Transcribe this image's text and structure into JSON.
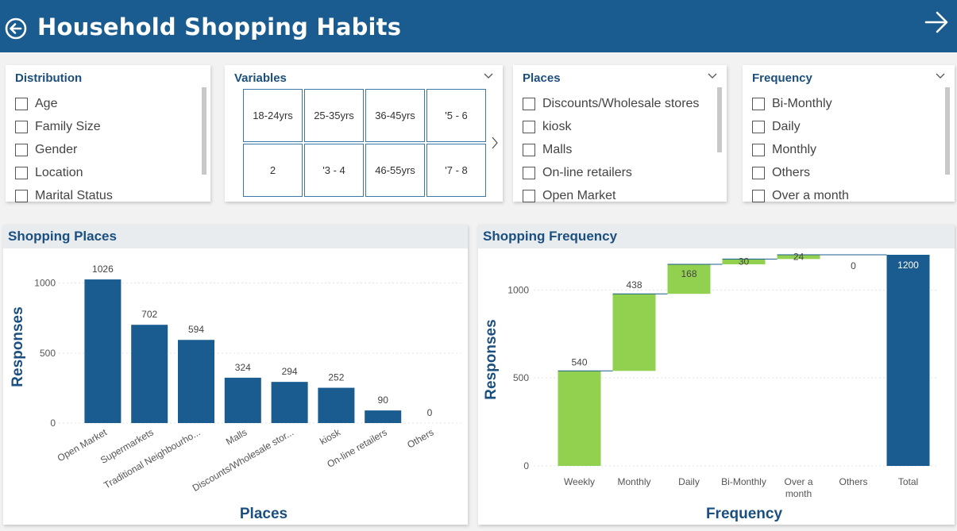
{
  "header": {
    "title": "Household Shopping Habits",
    "bg_color": "#1a5c8f",
    "back_icon": "circle-arrow-left-icon",
    "forward_icon": "arrow-right-icon"
  },
  "slicers": {
    "distribution": {
      "title": "Distribution",
      "items": [
        "Age",
        "Family Size",
        "Gender",
        "Location",
        "Marital Status"
      ]
    },
    "variables": {
      "title": "Variables",
      "tiles": [
        "18-24yrs",
        "25-35yrs",
        "36-45yrs",
        "'5 - 6",
        "2",
        "'3 - 4",
        "46-55yrs",
        "'7 - 8"
      ]
    },
    "places": {
      "title": "Places",
      "items": [
        "Discounts/Wholesale stores",
        "kiosk",
        "Malls",
        "On-line retailers",
        "Open Market"
      ]
    },
    "frequency": {
      "title": "Frequency",
      "items": [
        "Bi-Monthly",
        "Daily",
        "Monthly",
        "Others",
        "Over a month"
      ]
    }
  },
  "charts": {
    "places_title": "Shopping Places",
    "frequency_title": "Shopping Frequency"
  },
  "chart_data": [
    {
      "type": "bar",
      "title": "Shopping Places",
      "categories": [
        "Open Market",
        "Supermarkets",
        "Traditional Neighbourho...",
        "Malls",
        "Discounts/Wholesale stor...",
        "kiosk",
        "On-line retailers",
        "Others"
      ],
      "values": [
        1026,
        702,
        594,
        324,
        294,
        252,
        90,
        0
      ],
      "xlabel": "Places",
      "ylabel": "Responses",
      "yticks": [
        0,
        500,
        1000
      ],
      "ylim": [
        0,
        1100
      ],
      "bar_color": "#1a5c8f",
      "grid": true
    },
    {
      "type": "waterfall",
      "title": "Shopping Frequency",
      "categories": [
        "Weekly",
        "Monthly",
        "Daily",
        "Bi-Monthly",
        "Over a month",
        "Others",
        "Total"
      ],
      "values": [
        540,
        438,
        168,
        30,
        24,
        0,
        1200
      ],
      "xlabel": "Frequency",
      "ylabel": "Responses",
      "yticks": [
        0,
        500,
        1000
      ],
      "ylim": [
        0,
        1200
      ],
      "increase_color": "#92d050",
      "total_color": "#1a5c8f",
      "grid": true
    }
  ]
}
